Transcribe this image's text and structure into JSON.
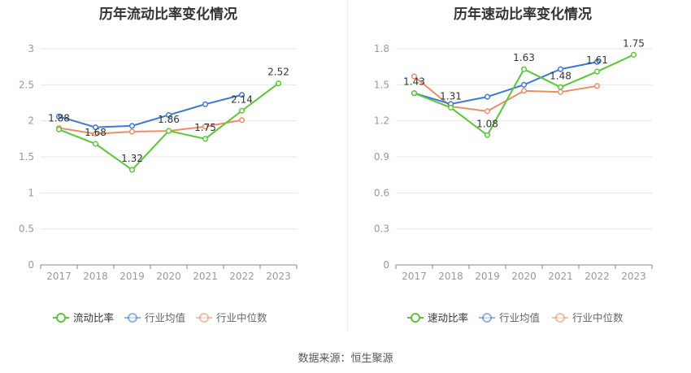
{
  "source_label": "数据来源：恒生聚源",
  "colors": {
    "primary": "#5ac832",
    "average": "#3c78d8",
    "median": "#f08c64",
    "grid": "#e6e6e6",
    "axis": "#999999",
    "label": "#333333"
  },
  "chart_data": [
    {
      "type": "line",
      "title": "历年流动比率变化情况",
      "categories": [
        "2017",
        "2018",
        "2019",
        "2020",
        "2021",
        "2022",
        "2023"
      ],
      "ylim": [
        0,
        3
      ],
      "yticks": [
        "0",
        "0.5",
        "1",
        "1.5",
        "2",
        "2.5",
        "3"
      ],
      "legend_position": "bottom",
      "series": [
        {
          "name": "流动比率",
          "values": [
            1.88,
            1.68,
            1.32,
            1.86,
            1.75,
            2.14,
            2.52
          ],
          "labels": [
            "1.88",
            "1.68",
            "1.32",
            "1.86",
            "1.75",
            "2.14",
            "2.52"
          ]
        },
        {
          "name": "行业均值",
          "values": [
            2.06,
            1.91,
            1.93,
            2.08,
            2.23,
            2.36,
            null
          ],
          "labels": []
        },
        {
          "name": "行业中位数",
          "values": [
            1.9,
            1.82,
            1.85,
            1.86,
            1.92,
            2.01,
            null
          ],
          "labels": []
        }
      ]
    },
    {
      "type": "line",
      "title": "历年速动比率变化情况",
      "categories": [
        "2017",
        "2018",
        "2019",
        "2020",
        "2021",
        "2022",
        "2023"
      ],
      "ylim": [
        0,
        1.8
      ],
      "yticks": [
        "0",
        "0.3",
        "0.6",
        "0.9",
        "1.2",
        "1.5",
        "1.8"
      ],
      "legend_position": "bottom",
      "series": [
        {
          "name": "速动比率",
          "values": [
            1.43,
            1.31,
            1.08,
            1.63,
            1.48,
            1.61,
            1.75
          ],
          "labels": [
            "1.43",
            "1.31",
            "1.08",
            "1.63",
            "1.48",
            "1.61",
            "1.75"
          ]
        },
        {
          "name": "行业均值",
          "values": [
            1.43,
            1.34,
            1.4,
            1.5,
            1.63,
            1.69,
            null
          ],
          "labels": []
        },
        {
          "name": "行业中位数",
          "values": [
            1.57,
            1.32,
            1.28,
            1.45,
            1.44,
            1.49,
            null
          ],
          "labels": []
        }
      ]
    }
  ]
}
